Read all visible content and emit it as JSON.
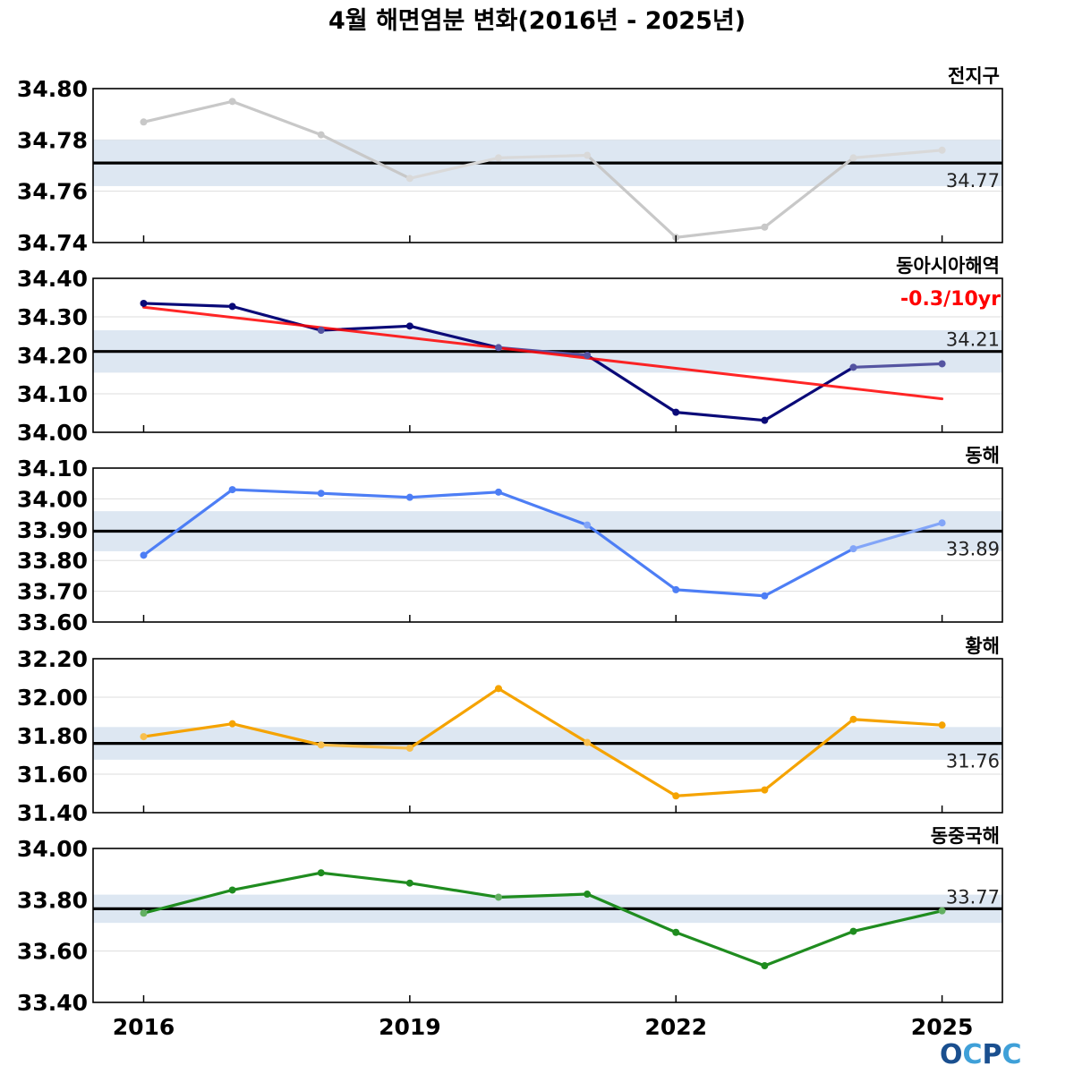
{
  "title": "4월 해면염분 변화(2016년 - 2025년)",
  "logo": {
    "text": "OCPC",
    "color_dark": "#1a4f8f",
    "color_light": "#3fa0d8"
  },
  "colors": {
    "clim_line": "#000000",
    "clim_band": "#dde7f2",
    "trend": "#ff0000",
    "grid": "#dddddd"
  },
  "chart_data": [
    {
      "type": "line",
      "title": "전지구",
      "x": [
        2016,
        2017,
        2018,
        2019,
        2020,
        2021,
        2022,
        2023,
        2024,
        2025
      ],
      "x_ticks": [
        2016,
        2019,
        2022,
        2025
      ],
      "series": [
        {
          "values": [
            34.787,
            34.795,
            34.782,
            34.765,
            34.773,
            34.774,
            34.742,
            34.746,
            34.773,
            34.776
          ],
          "color": "#c8c8c8"
        }
      ],
      "climatology": {
        "value": 34.771,
        "label": "34.77",
        "band": [
          34.762,
          34.78
        ]
      },
      "ylim": [
        34.74,
        34.8
      ],
      "yticks": [
        "34.74",
        "34.76",
        "34.78",
        "34.80"
      ],
      "clim_label_pos": "below"
    },
    {
      "type": "line",
      "title": "동아시아해역",
      "x": [
        2016,
        2017,
        2018,
        2019,
        2020,
        2021,
        2022,
        2023,
        2024,
        2025
      ],
      "x_ticks": [
        2016,
        2019,
        2022,
        2025
      ],
      "series": [
        {
          "values": [
            34.335,
            34.327,
            34.265,
            34.276,
            34.22,
            34.2,
            34.052,
            34.031,
            34.169,
            34.178
          ],
          "color": "#0a0a78"
        }
      ],
      "climatology": {
        "value": 34.21,
        "label": "34.21",
        "band": [
          34.155,
          34.265
        ]
      },
      "trend": {
        "start": 34.325,
        "end": 34.087,
        "label": "-0.3/10yr"
      },
      "ylim": [
        34.0,
        34.4
      ],
      "yticks": [
        "34.00",
        "34.10",
        "34.20",
        "34.30",
        "34.40"
      ],
      "clim_label_pos": "above"
    },
    {
      "type": "line",
      "title": "동해",
      "x": [
        2016,
        2017,
        2018,
        2019,
        2020,
        2021,
        2022,
        2023,
        2024,
        2025
      ],
      "x_ticks": [
        2016,
        2019,
        2022,
        2025
      ],
      "series": [
        {
          "values": [
            33.817,
            34.03,
            34.018,
            34.005,
            34.022,
            33.915,
            33.705,
            33.685,
            33.838,
            33.922
          ],
          "color": "#4d7ef5"
        }
      ],
      "climatology": {
        "value": 33.895,
        "label": "33.89",
        "band": [
          33.83,
          33.96
        ]
      },
      "ylim": [
        33.6,
        34.1
      ],
      "yticks": [
        "33.60",
        "33.70",
        "33.80",
        "33.90",
        "34.00",
        "34.10"
      ],
      "clim_label_pos": "below"
    },
    {
      "type": "line",
      "title": "황해",
      "x": [
        2016,
        2017,
        2018,
        2019,
        2020,
        2021,
        2022,
        2023,
        2024,
        2025
      ],
      "x_ticks": [
        2016,
        2019,
        2022,
        2025
      ],
      "series": [
        {
          "values": [
            31.795,
            31.862,
            31.752,
            31.735,
            32.045,
            31.765,
            31.487,
            31.518,
            31.885,
            31.855
          ],
          "color": "#f5a300"
        }
      ],
      "climatology": {
        "value": 31.76,
        "label": "31.76",
        "band": [
          31.675,
          31.845
        ]
      },
      "ylim": [
        31.4,
        32.2
      ],
      "yticks": [
        "31.40",
        "31.60",
        "31.80",
        "32.00",
        "32.20"
      ],
      "clim_label_pos": "below"
    },
    {
      "type": "line",
      "title": "동중국해",
      "x": [
        2016,
        2017,
        2018,
        2019,
        2020,
        2021,
        2022,
        2023,
        2024,
        2025
      ],
      "x_ticks": [
        2016,
        2019,
        2022,
        2025
      ],
      "series": [
        {
          "values": [
            33.748,
            33.838,
            33.905,
            33.865,
            33.81,
            33.822,
            33.673,
            33.543,
            33.677,
            33.757
          ],
          "color": "#1f8c1f"
        }
      ],
      "climatology": {
        "value": 33.765,
        "label": "33.77",
        "band": [
          33.71,
          33.82
        ]
      },
      "ylim": [
        33.4,
        34.0
      ],
      "yticks": [
        "33.40",
        "33.60",
        "33.80",
        "34.00"
      ],
      "clim_label_pos": "above"
    }
  ]
}
